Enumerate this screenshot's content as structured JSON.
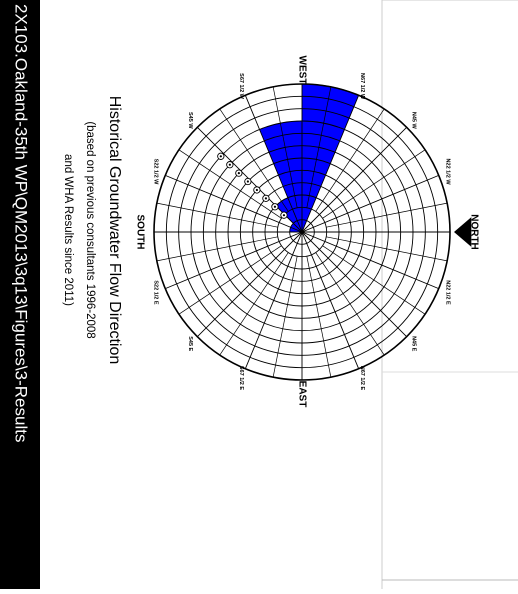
{
  "chart_data": {
    "type": "rose",
    "title": "Historical Groundwater Flow Direction",
    "subtitle_1": "(based on previous consultants 1996-2008",
    "subtitle_2": "and WHA Results since 2011)",
    "directions": [
      "NORTH",
      "EAST",
      "SOUTH",
      "WEST"
    ],
    "bearing_labels": {
      "ne": [
        "N22 1/2 E",
        "N45 E",
        "N67 1/2 E"
      ],
      "se": [
        "S67 1/2 E",
        "S45 E",
        "S22 1/2 E"
      ],
      "sw": [
        "S22 1/2 W",
        "S45 W",
        "S67 1/2 W"
      ],
      "nw": [
        "N67 1/2 W",
        "N45 W",
        "N22 1/2 W"
      ]
    },
    "rings": 12,
    "sectors": [
      {
        "from_bearing_deg": 270,
        "to_bearing_deg": 292.5,
        "count": 12,
        "color": "#0000ff"
      },
      {
        "from_bearing_deg": 247.5,
        "to_bearing_deg": 270,
        "count": 9,
        "color": "#0000ff"
      },
      {
        "from_bearing_deg": 225,
        "to_bearing_deg": 247.5,
        "count": 3,
        "color": "#0000ff"
      },
      {
        "from_bearing_deg": 202.5,
        "to_bearing_deg": 225,
        "count": 1,
        "color": "#0000ff"
      },
      {
        "from_bearing_deg": 180,
        "to_bearing_deg": 202.5,
        "count": 1,
        "color": "#0000ff"
      }
    ],
    "grid": true
  },
  "footer": {
    "path": "2X103.Oakland-35th WP\\QM2013\\3q13\\Figures\\3-Results"
  },
  "colors": {
    "sector": "#0000ff",
    "footer_bar": "#000000",
    "footer_text": "#ffffff",
    "grid": "#000000"
  }
}
